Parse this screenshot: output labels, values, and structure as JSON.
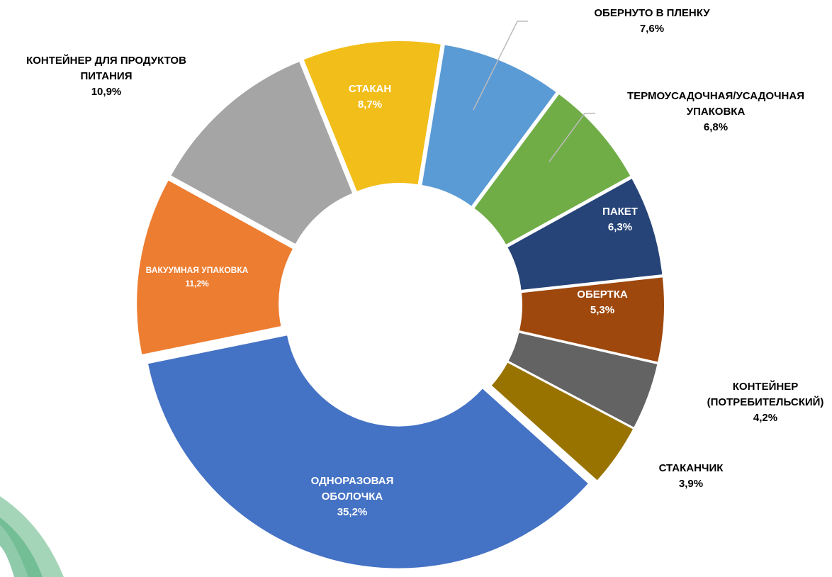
{
  "chart_data": {
    "type": "donut",
    "categories": [
      "СТАКАН",
      "ОБЕРНУТО В ПЛЕНКУ",
      "ТЕРМОУСАДОЧНАЯ/УСАДОЧНАЯ УПАКОВКА",
      "ПАКЕТ",
      "ОБЕРТКА",
      "КОНТЕЙНЕР (ПОТРЕБИТЕЛЬСКИЙ)",
      "СТАКАНЧИК",
      "ОДНОРАЗОВАЯ ОБОЛОЧКА",
      "ВАКУУМНАЯ УПАКОВКА",
      "КОНТЕЙНЕР ДЛЯ ПРОДУКТОВ ПИТАНИЯ"
    ],
    "values": [
      8.7,
      7.6,
      6.8,
      6.3,
      5.3,
      4.2,
      3.9,
      35.2,
      11.2,
      10.9
    ],
    "value_labels": [
      "8,7%",
      "7,6%",
      "6,8%",
      "6,3%",
      "5,3%",
      "4,2%",
      "3,9%",
      "35,2%",
      "11,2%",
      "10,9%"
    ],
    "colors": [
      "#f2be1a",
      "#5b9bd5",
      "#70ad47",
      "#264478",
      "#9e480e",
      "#636363",
      "#997300",
      "#4472c4",
      "#ed7d31",
      "#a5a5a5"
    ]
  }
}
